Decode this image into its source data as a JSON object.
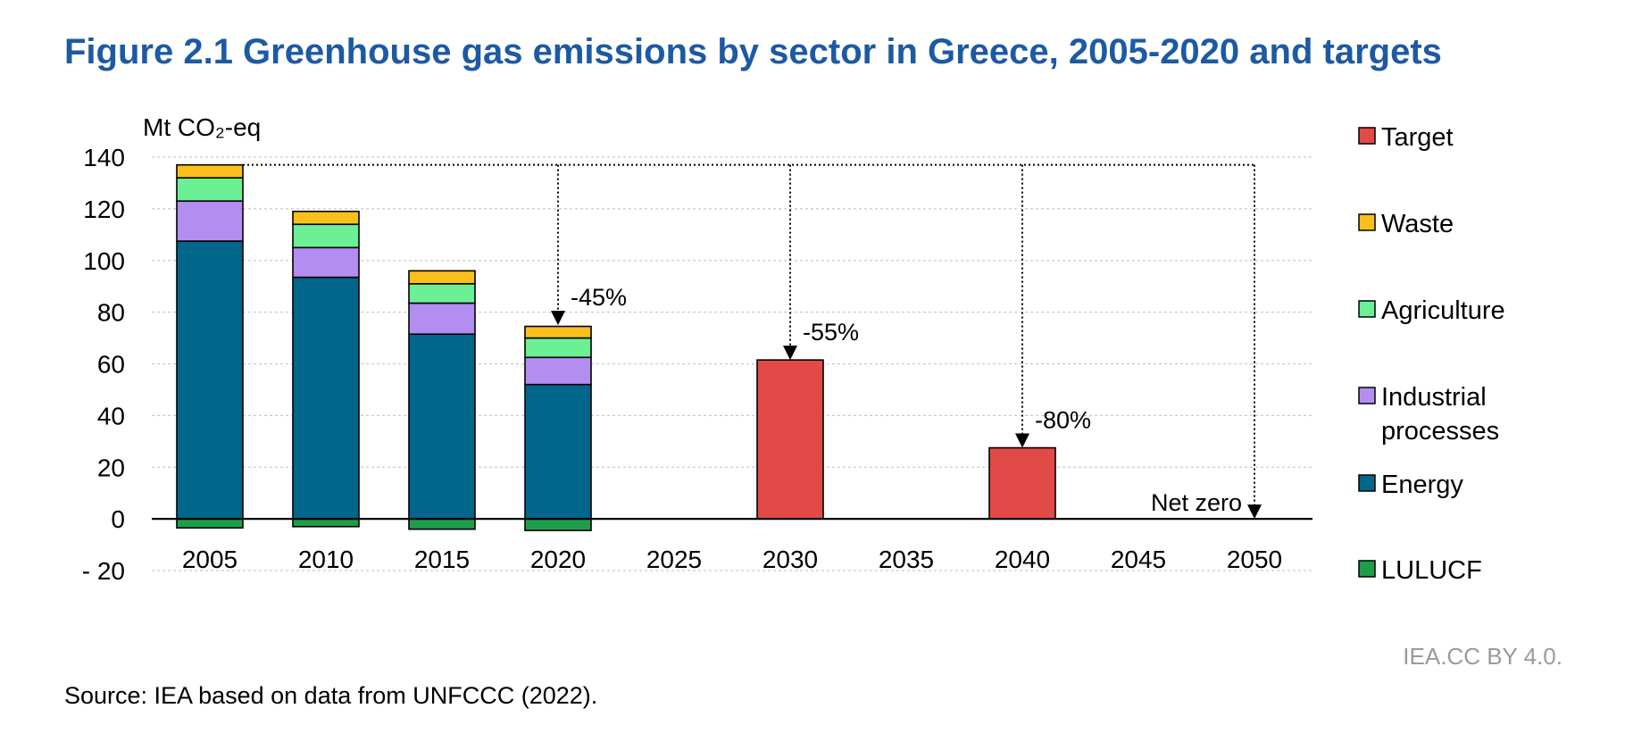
{
  "title": "Figure 2.1 Greenhouse gas emissions by sector in Greece, 2005-2020 and targets",
  "credit": "IEA.CC BY 4.0.",
  "source": "Source: IEA based on data from UNFCCC (2022).",
  "chart_data": {
    "type": "bar",
    "stacked": true,
    "ylabel": "Mt CO₂-eq",
    "ylim": [
      -20,
      140
    ],
    "yticks": [
      140,
      120,
      100,
      80,
      60,
      40,
      20,
      0,
      -20
    ],
    "ytick_labels": [
      "140",
      "120",
      "100",
      "80",
      "60",
      "40",
      "20",
      "0",
      "- 20"
    ],
    "categories": [
      "2005",
      "2010",
      "2015",
      "2020",
      "2025",
      "2030",
      "2035",
      "2040",
      "2045",
      "2050"
    ],
    "grid": true,
    "legend_position": "right",
    "series": [
      {
        "name": "LULUCF",
        "color": "#1e9e4a",
        "values": [
          -3.5,
          -3,
          -4,
          -4.5,
          null,
          null,
          null,
          null,
          null,
          null
        ]
      },
      {
        "name": "Energy",
        "color": "#00668c",
        "values": [
          107.5,
          93.5,
          71.5,
          52,
          null,
          null,
          null,
          null,
          null,
          null
        ]
      },
      {
        "name": "Industrial processes",
        "color": "#b38ef0",
        "values": [
          15.5,
          11.5,
          12,
          10.5,
          null,
          null,
          null,
          null,
          null,
          null
        ]
      },
      {
        "name": "Agriculture",
        "color": "#6bf096",
        "values": [
          9,
          9,
          7.5,
          7.5,
          null,
          null,
          null,
          null,
          null,
          null
        ]
      },
      {
        "name": "Waste",
        "color": "#fbbf1c",
        "values": [
          5,
          5,
          5,
          4.5,
          null,
          null,
          null,
          null,
          null,
          null
        ]
      },
      {
        "name": "Target",
        "color": "#e24a47",
        "values": [
          null,
          null,
          null,
          null,
          null,
          61.5,
          null,
          27.5,
          null,
          0
        ]
      }
    ],
    "legend": [
      {
        "label_lines": [
          "Target"
        ],
        "color": "#e24a47"
      },
      {
        "label_lines": [
          "Waste"
        ],
        "color": "#fbbf1c"
      },
      {
        "label_lines": [
          "Agriculture"
        ],
        "color": "#6bf096"
      },
      {
        "label_lines": [
          "Industrial",
          "processes"
        ],
        "color": "#b38ef0"
      },
      {
        "label_lines": [
          "Energy"
        ],
        "color": "#00668c"
      },
      {
        "label_lines": [
          "LULUCF"
        ],
        "color": "#1e9e4a"
      }
    ],
    "reference_line": {
      "value": 137,
      "from_category": "2005",
      "to_category": "2050"
    },
    "annotations": [
      {
        "category": "2020",
        "text": "-45%",
        "arrow_to": 75
      },
      {
        "category": "2030",
        "text": "-55%",
        "arrow_to": 61.5
      },
      {
        "category": "2040",
        "text": "-80%",
        "arrow_to": 27.5
      },
      {
        "category": "2050",
        "text": "Net zero",
        "arrow_to": 0
      }
    ]
  }
}
